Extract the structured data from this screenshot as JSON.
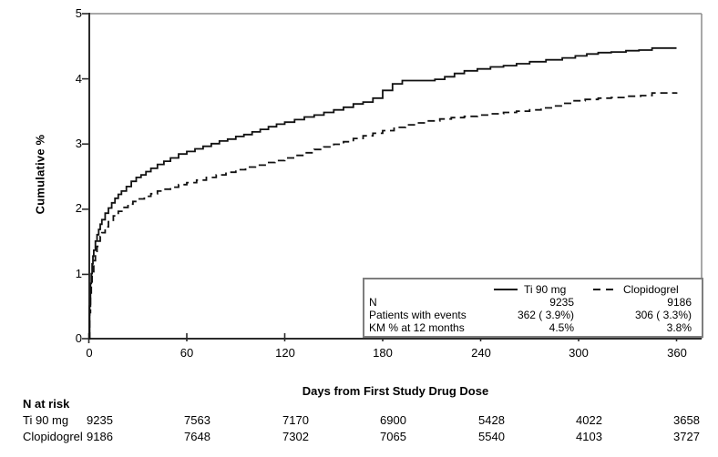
{
  "figure": {
    "y_axis": {
      "label": "Cumulative %",
      "ticks": [
        "0",
        "1",
        "2",
        "3",
        "4",
        "5"
      ]
    },
    "x_axis": {
      "label": "Days from First Study Drug Dose",
      "ticks": [
        "0",
        "60",
        "120",
        "180",
        "240",
        "300",
        "360"
      ]
    },
    "legend": {
      "row_labels": {
        "n": "N",
        "events": "Patients with events",
        "km": "KM % at 12 months"
      },
      "series": [
        {
          "name": "Ti 90 mg",
          "n": "9235",
          "events": "362 ( 3.9%)",
          "km": "4.5%"
        },
        {
          "name": "Clopidogrel",
          "n": "9186",
          "events": "306 ( 3.3%)",
          "km": "3.8%"
        }
      ]
    },
    "n_at_risk": {
      "title": "N at risk",
      "rows": [
        {
          "label": "Ti 90 mg",
          "values": [
            "9235",
            "7563",
            "7170",
            "6900",
            "5428",
            "4022",
            "3658"
          ]
        },
        {
          "label": "Clopidogrel",
          "values": [
            "9186",
            "7648",
            "7302",
            "7065",
            "5540",
            "4103",
            "3727"
          ]
        }
      ]
    },
    "colors": {
      "curve": "#111111",
      "axis": "#2b2b2b",
      "frame": "#8c8c8c"
    }
  },
  "chart_data": {
    "type": "line",
    "subtype": "kaplan-meier-cumulative-incidence",
    "title": "",
    "xlabel": "Days from First Study Drug Dose",
    "ylabel": "Cumulative %",
    "xlim": [
      0,
      376
    ],
    "ylim": [
      0,
      5
    ],
    "x_ticks": [
      0,
      60,
      120,
      180,
      240,
      300,
      360
    ],
    "y_ticks": [
      0,
      1,
      2,
      3,
      4,
      5
    ],
    "grid": false,
    "legend_position": "inside-bottom-right",
    "series": [
      {
        "id": "ti",
        "name": "Ti 90 mg",
        "style": "solid",
        "n": 9235,
        "patients_with_events": "362 ( 3.9%)",
        "km_pct_12_months": 4.5,
        "points": [
          [
            0,
            0
          ],
          [
            0.5,
            0.5
          ],
          [
            1,
            0.85
          ],
          [
            1.5,
            1.0
          ],
          [
            2,
            1.15
          ],
          [
            2.5,
            1.27
          ],
          [
            3,
            1.36
          ],
          [
            4,
            1.5
          ],
          [
            5,
            1.6
          ],
          [
            6,
            1.68
          ],
          [
            7,
            1.76
          ],
          [
            8,
            1.83
          ],
          [
            10,
            1.93
          ],
          [
            12,
            2.01
          ],
          [
            14,
            2.09
          ],
          [
            16,
            2.16
          ],
          [
            18,
            2.22
          ],
          [
            20,
            2.27
          ],
          [
            23,
            2.34
          ],
          [
            26,
            2.42
          ],
          [
            29,
            2.48
          ],
          [
            32,
            2.52
          ],
          [
            35,
            2.57
          ],
          [
            38,
            2.62
          ],
          [
            42,
            2.68
          ],
          [
            46,
            2.73
          ],
          [
            50,
            2.78
          ],
          [
            55,
            2.84
          ],
          [
            60,
            2.88
          ],
          [
            65,
            2.92
          ],
          [
            70,
            2.96
          ],
          [
            75,
            3.0
          ],
          [
            80,
            3.04
          ],
          [
            85,
            3.07
          ],
          [
            90,
            3.11
          ],
          [
            95,
            3.14
          ],
          [
            100,
            3.18
          ],
          [
            105,
            3.22
          ],
          [
            110,
            3.26
          ],
          [
            115,
            3.3
          ],
          [
            120,
            3.33
          ],
          [
            126,
            3.37
          ],
          [
            132,
            3.41
          ],
          [
            138,
            3.44
          ],
          [
            144,
            3.48
          ],
          [
            150,
            3.52
          ],
          [
            156,
            3.56
          ],
          [
            162,
            3.61
          ],
          [
            168,
            3.64
          ],
          [
            174,
            3.7
          ],
          [
            180,
            3.82
          ],
          [
            186,
            3.92
          ],
          [
            192,
            3.97
          ],
          [
            212,
            3.99
          ],
          [
            218,
            4.03
          ],
          [
            224,
            4.08
          ],
          [
            230,
            4.12
          ],
          [
            238,
            4.15
          ],
          [
            246,
            4.18
          ],
          [
            254,
            4.2
          ],
          [
            262,
            4.23
          ],
          [
            270,
            4.26
          ],
          [
            280,
            4.29
          ],
          [
            290,
            4.32
          ],
          [
            298,
            4.35
          ],
          [
            305,
            4.38
          ],
          [
            312,
            4.4
          ],
          [
            320,
            4.41
          ],
          [
            329,
            4.43
          ],
          [
            337,
            4.44
          ],
          [
            345,
            4.47
          ],
          [
            360,
            4.47
          ]
        ]
      },
      {
        "id": "clopidogrel",
        "name": "Clopidogrel",
        "style": "dashed",
        "n": 9186,
        "patients_with_events": "306 ( 3.3%)",
        "km_pct_12_months": 3.8,
        "points": [
          [
            0,
            0
          ],
          [
            0.5,
            0.4
          ],
          [
            1,
            0.67
          ],
          [
            1.5,
            0.86
          ],
          [
            2,
            1.0
          ],
          [
            3,
            1.2
          ],
          [
            4,
            1.32
          ],
          [
            5,
            1.42
          ],
          [
            6,
            1.5
          ],
          [
            7,
            1.57
          ],
          [
            8,
            1.63
          ],
          [
            10,
            1.72
          ],
          [
            12,
            1.8
          ],
          [
            15,
            1.89
          ],
          [
            18,
            1.96
          ],
          [
            21,
            2.02
          ],
          [
            24,
            2.07
          ],
          [
            27,
            2.11
          ],
          [
            30,
            2.15
          ],
          [
            34,
            2.19
          ],
          [
            38,
            2.23
          ],
          [
            42,
            2.27
          ],
          [
            46,
            2.3
          ],
          [
            50,
            2.33
          ],
          [
            55,
            2.37
          ],
          [
            60,
            2.4
          ],
          [
            66,
            2.44
          ],
          [
            72,
            2.48
          ],
          [
            78,
            2.52
          ],
          [
            84,
            2.56
          ],
          [
            90,
            2.6
          ],
          [
            96,
            2.64
          ],
          [
            102,
            2.67
          ],
          [
            108,
            2.71
          ],
          [
            114,
            2.74
          ],
          [
            120,
            2.78
          ],
          [
            126,
            2.82
          ],
          [
            132,
            2.86
          ],
          [
            138,
            2.91
          ],
          [
            144,
            2.95
          ],
          [
            150,
            2.99
          ],
          [
            156,
            3.03
          ],
          [
            162,
            3.08
          ],
          [
            168,
            3.12
          ],
          [
            174,
            3.16
          ],
          [
            180,
            3.2
          ],
          [
            187,
            3.25
          ],
          [
            194,
            3.29
          ],
          [
            201,
            3.32
          ],
          [
            208,
            3.35
          ],
          [
            215,
            3.38
          ],
          [
            222,
            3.4
          ],
          [
            230,
            3.42
          ],
          [
            238,
            3.44
          ],
          [
            246,
            3.46
          ],
          [
            254,
            3.48
          ],
          [
            262,
            3.5
          ],
          [
            270,
            3.52
          ],
          [
            277,
            3.55
          ],
          [
            284,
            3.58
          ],
          [
            290,
            3.62
          ],
          [
            296,
            3.66
          ],
          [
            304,
            3.68
          ],
          [
            312,
            3.7
          ],
          [
            320,
            3.71
          ],
          [
            330,
            3.73
          ],
          [
            338,
            3.74
          ],
          [
            345,
            3.78
          ],
          [
            360,
            3.79
          ]
        ]
      }
    ],
    "n_at_risk": {
      "days": [
        0,
        60,
        120,
        180,
        240,
        300,
        360
      ],
      "Ti 90 mg": [
        9235,
        7563,
        7170,
        6900,
        5428,
        4022,
        3658
      ],
      "Clopidogrel": [
        9186,
        7648,
        7302,
        7065,
        5540,
        4103,
        3727
      ]
    }
  }
}
